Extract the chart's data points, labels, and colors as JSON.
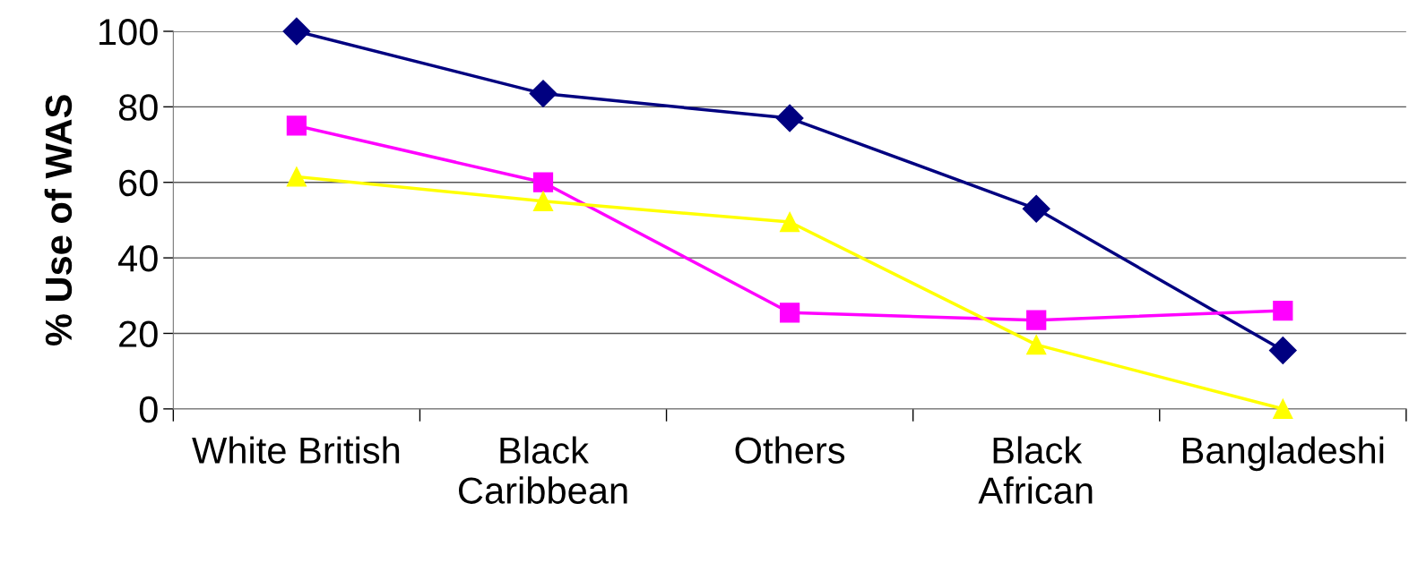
{
  "chart_data": {
    "type": "line",
    "ylabel": "% Use of WAS",
    "categories": [
      "White British",
      "Black\nCaribbean",
      "Others",
      "Black\nAfrican",
      "Bangladeshi"
    ],
    "series": [
      {
        "color": "#000080",
        "marker": "diamond",
        "values": [
          100,
          83.5,
          77,
          53,
          15.5
        ]
      },
      {
        "color": "#ff00ff",
        "marker": "square",
        "values": [
          75,
          60,
          25.5,
          23.5,
          26
        ]
      },
      {
        "color": "#ffff00",
        "marker": "triangle",
        "values": [
          61.5,
          55,
          49.5,
          17,
          0
        ]
      }
    ],
    "ylim": [
      0,
      100
    ],
    "yticks": [
      0,
      20,
      40,
      60,
      80,
      100
    ],
    "grid": "y",
    "legend": false,
    "line_style": "solid"
  }
}
